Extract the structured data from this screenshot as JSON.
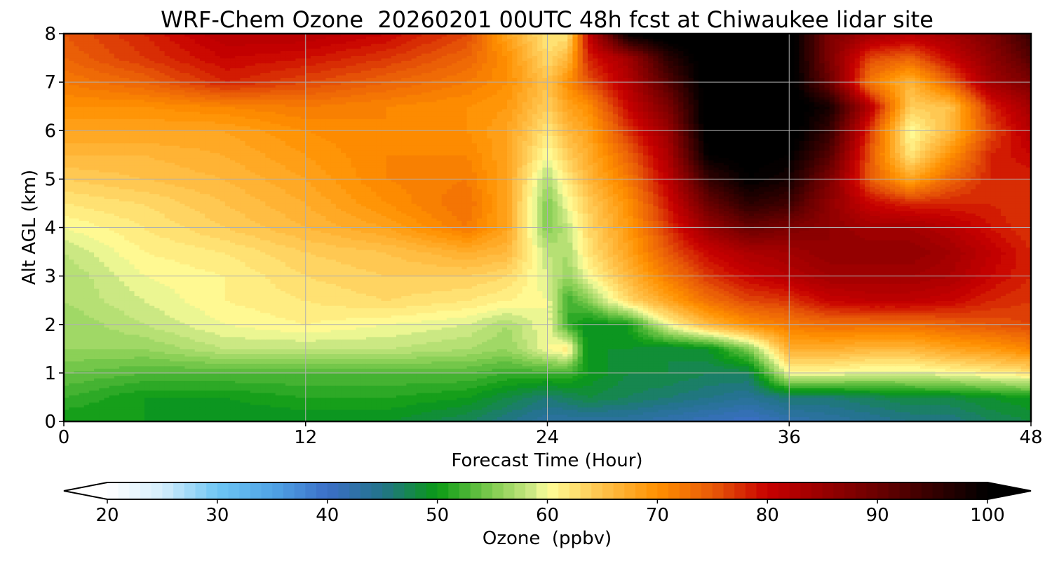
{
  "chart_data": {
    "type": "heatmap",
    "title": "WRF-Chem Ozone  20260201 00UTC 48h fcst at Chiwaukee lidar site",
    "xlabel": "Forecast Time (Hour)",
    "ylabel": "Alt AGL (km)",
    "xlim": [
      0,
      48
    ],
    "ylim": [
      0,
      8
    ],
    "xticks": [
      0,
      12,
      24,
      36,
      48
    ],
    "yticks": [
      0,
      1,
      2,
      3,
      4,
      5,
      6,
      7,
      8
    ],
    "grid": true,
    "x": [
      0,
      4,
      8,
      12,
      16,
      20,
      22,
      24,
      25,
      26,
      28,
      30,
      32,
      34,
      36,
      38,
      40,
      42,
      44,
      46,
      48
    ],
    "y": [
      0,
      0.5,
      1,
      1.5,
      2,
      2.5,
      3,
      3.5,
      4,
      4.5,
      5,
      5.5,
      6,
      6.5,
      7,
      7.5,
      8
    ],
    "z": [
      [
        50,
        50,
        49,
        49,
        49,
        47,
        45,
        43,
        43,
        43,
        43,
        42,
        41,
        40,
        42,
        43,
        44,
        45,
        45,
        47,
        48
      ],
      [
        52,
        50,
        50,
        51,
        51,
        50,
        48,
        46,
        47,
        48,
        47,
        46,
        45,
        44,
        46,
        46,
        47,
        48,
        48,
        49,
        50
      ],
      [
        54,
        53,
        53,
        53,
        53,
        53,
        52,
        52,
        52,
        50,
        48,
        48,
        47,
        47,
        60,
        60,
        59,
        59,
        60,
        61,
        62
      ],
      [
        56,
        56,
        58,
        58,
        58,
        57,
        56,
        60,
        62,
        49,
        49,
        48,
        49,
        55,
        67,
        67,
        66,
        66,
        68,
        69,
        71
      ],
      [
        56,
        58,
        60,
        61,
        60,
        59,
        57,
        60,
        52,
        49,
        50,
        60,
        66,
        70,
        72,
        73,
        73,
        73,
        74,
        75,
        76
      ],
      [
        57,
        59,
        61,
        62,
        63,
        62,
        61,
        60,
        52,
        55,
        63,
        68,
        73,
        76,
        77,
        80,
        81,
        81,
        80,
        78,
        77
      ],
      [
        57,
        60,
        61,
        63,
        64,
        64,
        63,
        59,
        56,
        60,
        66,
        72,
        77,
        80,
        82,
        84,
        84,
        84,
        83,
        80,
        78
      ],
      [
        58,
        61,
        62,
        64,
        65,
        67,
        66,
        58,
        57,
        62,
        68,
        75,
        80,
        83,
        84,
        86,
        86,
        86,
        84,
        81,
        78
      ],
      [
        60,
        62,
        64,
        66,
        68,
        72,
        68,
        55,
        58,
        63,
        69,
        77,
        85,
        90,
        88,
        86,
        84,
        84,
        82,
        79,
        77
      ],
      [
        62,
        63,
        65,
        67,
        70,
        73,
        68,
        55,
        60,
        64,
        70,
        79,
        90,
        96,
        94,
        86,
        80,
        78,
        78,
        78,
        77
      ],
      [
        64,
        65,
        66,
        68,
        71,
        72,
        68,
        57,
        62,
        66,
        72,
        81,
        95,
        100,
        98,
        88,
        75,
        68,
        74,
        78,
        78
      ],
      [
        66,
        66,
        67,
        69,
        71,
        71,
        68,
        60,
        64,
        67,
        74,
        83,
        100,
        101,
        100,
        92,
        75,
        62,
        70,
        78,
        80
      ],
      [
        68,
        68,
        68,
        70,
        71,
        70,
        68,
        62,
        66,
        68,
        77,
        85,
        102,
        102,
        102,
        95,
        77,
        60,
        66,
        76,
        82
      ],
      [
        70,
        70,
        71,
        72,
        71,
        70,
        69,
        64,
        68,
        70,
        80,
        88,
        102,
        102,
        102,
        98,
        82,
        64,
        65,
        78,
        84
      ],
      [
        72,
        74,
        78,
        76,
        74,
        72,
        70,
        65,
        70,
        75,
        82,
        92,
        102,
        102,
        102,
        90,
        72,
        66,
        74,
        84,
        88
      ],
      [
        74,
        77,
        80,
        79,
        77,
        74,
        70,
        63,
        66,
        78,
        84,
        96,
        102,
        102,
        102,
        88,
        76,
        74,
        80,
        86,
        92
      ],
      [
        75,
        78,
        82,
        82,
        80,
        76,
        68,
        62,
        62,
        80,
        100,
        102,
        102,
        102,
        102,
        88,
        84,
        82,
        84,
        88,
        95
      ]
    ],
    "colorbar": {
      "label": "Ozone  (ppbv)",
      "min": 20,
      "max": 100,
      "step": 1,
      "extend": "both",
      "tick_values": [
        20,
        30,
        40,
        50,
        60,
        70,
        80,
        90,
        100
      ],
      "ticks": [
        "20",
        "30",
        "40",
        "50",
        "60",
        "70",
        "80",
        "90",
        "100"
      ],
      "colormap": [
        [
          20,
          "#ffffff"
        ],
        [
          25,
          "#d4eefc"
        ],
        [
          30,
          "#6ec6f4"
        ],
        [
          35,
          "#50a4e6"
        ],
        [
          40,
          "#3b6fc7"
        ],
        [
          45,
          "#22738a"
        ],
        [
          50,
          "#0a9a14"
        ],
        [
          55,
          "#80cc50"
        ],
        [
          59,
          "#d6ec8a"
        ],
        [
          60,
          "#ffff9a"
        ],
        [
          65,
          "#ffc24a"
        ],
        [
          70,
          "#ff9000"
        ],
        [
          75,
          "#e85a08"
        ],
        [
          80,
          "#c80000"
        ],
        [
          90,
          "#6a0000"
        ],
        [
          100,
          "#000000"
        ]
      ]
    }
  }
}
